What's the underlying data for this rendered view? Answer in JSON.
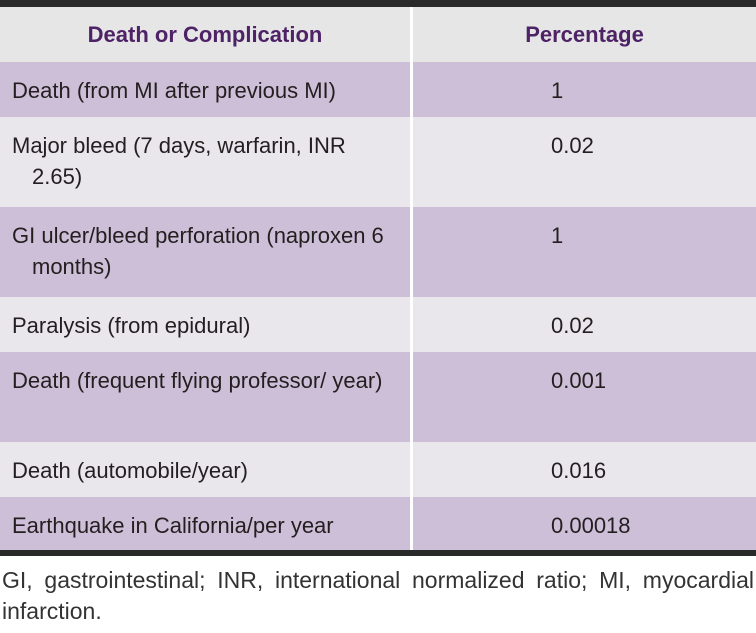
{
  "table": {
    "header": [
      "Death or Complication",
      "Percentage"
    ],
    "rows": [
      [
        "Death (from MI after previous MI)",
        "1"
      ],
      [
        "Major bleed (7 days, warfarin, INR 2.65)",
        "0.02"
      ],
      [
        "GI ulcer/bleed perforation (naproxen 6 months)",
        "1"
      ],
      [
        "Paralysis (from epidural)",
        "0.02"
      ],
      [
        "Death (frequent flying professor/ year)",
        "0.001"
      ],
      [
        "Death (automobile/year)",
        "0.016"
      ],
      [
        "Earthquake in California/per year",
        "0.00018"
      ]
    ]
  },
  "footnote": "GI, gastrointestinal; INR, international normalized ratio; MI, myocardial infarction."
}
